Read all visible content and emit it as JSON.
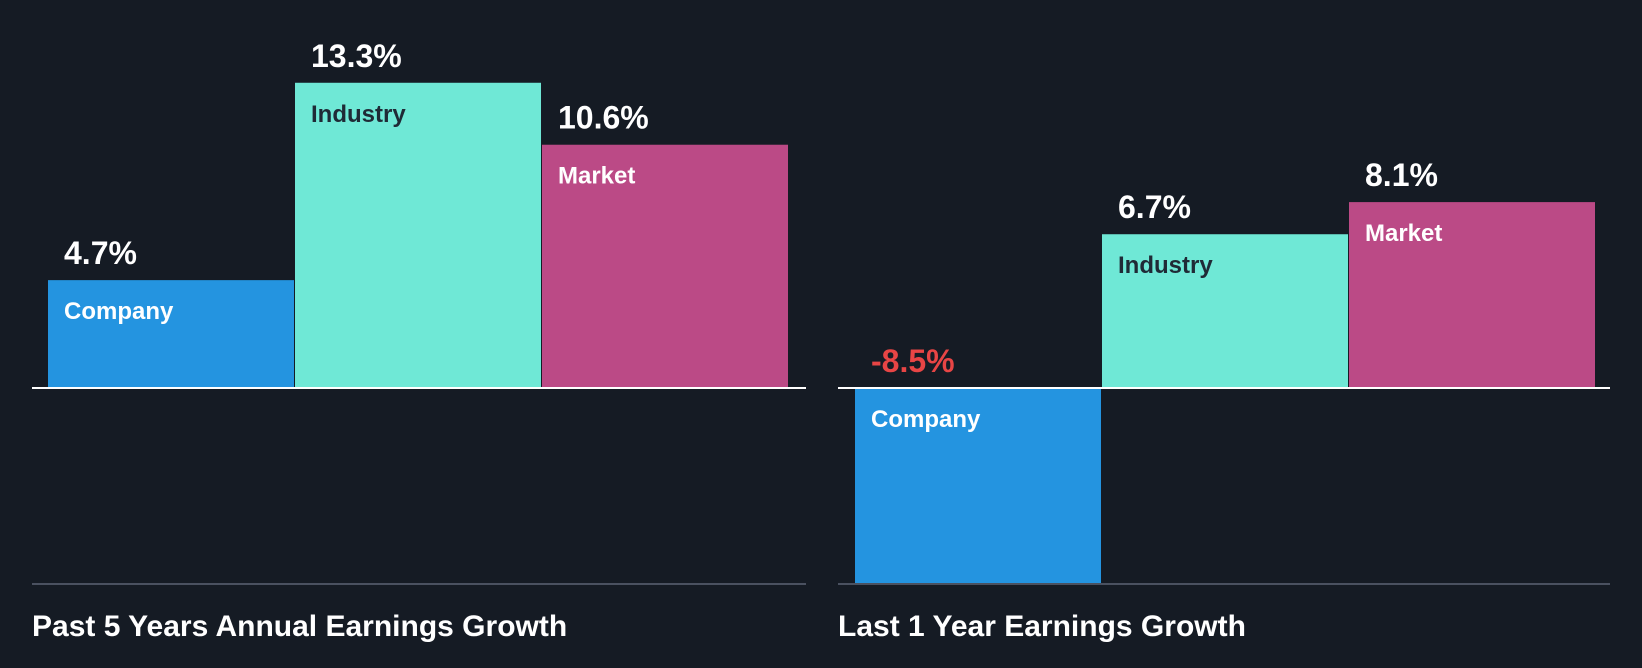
{
  "colors": {
    "background": "#151b24",
    "company": "#2494e0",
    "industry": "#6fe8d6",
    "market": "#bb4a86",
    "positive_text": "#ffffff",
    "negative_text": "#e84545",
    "label_on_light": "#1f2a36",
    "label_on_dark": "#ffffff",
    "baseline": "#ffffff",
    "divider": "#4a5160"
  },
  "chart_data": [
    {
      "type": "bar",
      "title": "Past 5 Years Annual Earnings Growth",
      "categories": [
        "Company",
        "Industry",
        "Market"
      ],
      "values": [
        4.7,
        13.3,
        10.6
      ],
      "value_labels": [
        "4.7%",
        "13.3%",
        "10.6%"
      ],
      "unit": "%",
      "ylim": [
        -8.5,
        13.3
      ],
      "grid": false,
      "legend": "none"
    },
    {
      "type": "bar",
      "title": "Last 1 Year Earnings Growth",
      "categories": [
        "Company",
        "Industry",
        "Market"
      ],
      "values": [
        -8.5,
        6.7,
        8.1
      ],
      "value_labels": [
        "-8.5%",
        "6.7%",
        "8.1%"
      ],
      "unit": "%",
      "ylim": [
        -8.5,
        13.3
      ],
      "grid": false,
      "legend": "none"
    }
  ]
}
